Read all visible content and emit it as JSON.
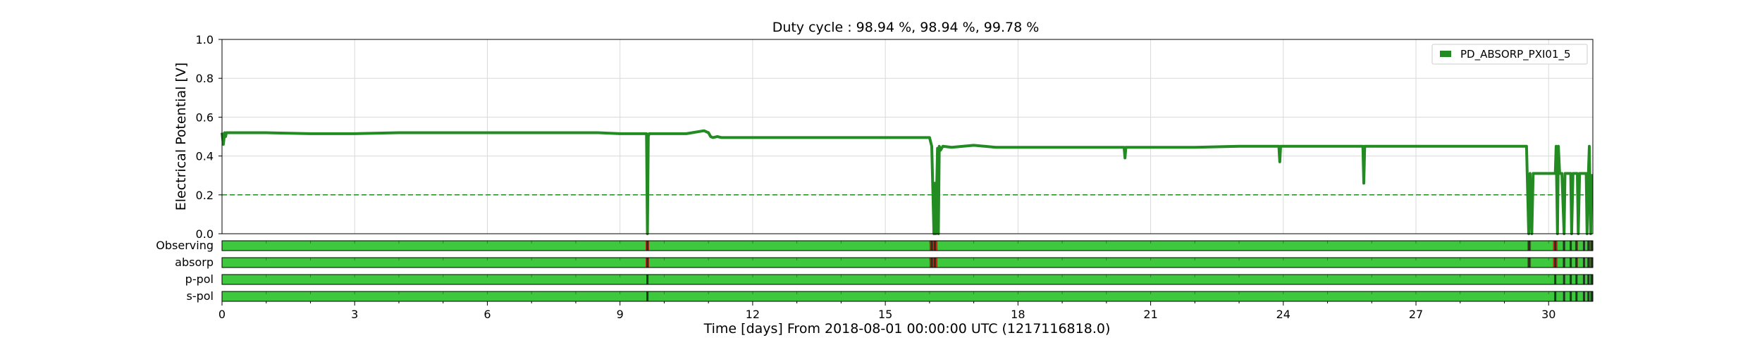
{
  "chart_data": {
    "type": "line",
    "title": "Duty cycle : 98.94 %, 98.94 %, 99.78 %",
    "xlabel": "Time [days] From 2018-08-01 00:00:00 UTC (1217116818.0)",
    "ylabel": "Electrical Potential [V]",
    "xlim": [
      0,
      31
    ],
    "ylim": [
      0,
      1.0
    ],
    "xticks": [
      0,
      3,
      6,
      9,
      12,
      15,
      18,
      21,
      24,
      27,
      30
    ],
    "yticks": [
      0.0,
      0.2,
      0.4,
      0.6,
      0.8,
      1.0
    ],
    "grid": true,
    "legend_position": "top-right",
    "threshold": 0.2,
    "series": [
      {
        "name": "PD_ABSORP_PXI01_5",
        "color": "#228b22",
        "x": [
          0.0,
          0.03,
          0.06,
          0.08,
          0.1,
          0.5,
          1.0,
          2.0,
          3.0,
          4.0,
          5.0,
          6.0,
          7.0,
          8.0,
          8.5,
          9.0,
          9.6,
          9.62,
          9.64,
          9.66,
          10.0,
          10.5,
          10.9,
          11.0,
          11.05,
          11.1,
          11.2,
          11.3,
          12.0,
          13.0,
          14.0,
          15.0,
          16.0,
          16.05,
          16.1,
          16.12,
          16.14,
          16.18,
          16.2,
          16.22,
          16.25,
          16.3,
          16.5,
          17.0,
          17.5,
          18.0,
          19.0,
          20.0,
          20.4,
          20.42,
          20.44,
          21.0,
          22.0,
          23.0,
          23.9,
          23.92,
          23.94,
          24.0,
          25.0,
          25.8,
          25.82,
          25.84,
          26.0,
          27.0,
          28.0,
          29.0,
          29.5,
          29.55,
          29.58,
          29.62,
          29.65,
          30.0,
          30.15,
          30.17,
          30.2,
          30.22,
          30.25,
          30.3,
          30.35,
          30.37,
          30.4,
          30.45,
          30.5,
          30.52,
          30.55,
          30.6,
          30.65,
          30.67,
          30.7,
          30.75,
          30.8,
          30.85,
          30.87,
          30.9,
          30.92,
          30.95,
          30.97,
          31.0
        ],
        "y": [
          0.52,
          0.46,
          0.52,
          0.5,
          0.52,
          0.52,
          0.52,
          0.515,
          0.515,
          0.52,
          0.52,
          0.52,
          0.52,
          0.52,
          0.52,
          0.515,
          0.515,
          0.0,
          0.5,
          0.515,
          0.515,
          0.515,
          0.53,
          0.52,
          0.5,
          0.495,
          0.5,
          0.495,
          0.495,
          0.495,
          0.495,
          0.495,
          0.495,
          0.45,
          0.0,
          0.26,
          0.0,
          0.44,
          0.0,
          0.45,
          0.43,
          0.45,
          0.445,
          0.455,
          0.445,
          0.445,
          0.445,
          0.445,
          0.445,
          0.39,
          0.445,
          0.445,
          0.445,
          0.45,
          0.45,
          0.37,
          0.45,
          0.45,
          0.45,
          0.45,
          0.26,
          0.45,
          0.45,
          0.45,
          0.45,
          0.45,
          0.45,
          0.0,
          0.31,
          0.0,
          0.31,
          0.31,
          0.31,
          0.45,
          0.0,
          0.45,
          0.31,
          0.31,
          0.0,
          0.31,
          0.31,
          0.31,
          0.31,
          0.0,
          0.31,
          0.31,
          0.31,
          0.0,
          0.31,
          0.31,
          0.31,
          0.31,
          0.0,
          0.31,
          0.45,
          0.0,
          0.3,
          0.3
        ]
      }
    ],
    "segment_rows": [
      {
        "label": "Observing",
        "on_color": "#3ec83e",
        "off_color": "#c8281e",
        "gaps": [
          [
            9.58,
            9.66
          ],
          [
            16.0,
            16.18
          ],
          [
            29.52,
            29.6
          ],
          [
            30.1,
            30.2
          ],
          [
            30.32,
            30.36
          ],
          [
            30.48,
            30.52
          ],
          [
            30.6,
            30.66
          ],
          [
            30.78,
            30.82
          ],
          [
            30.88,
            30.94
          ]
        ]
      },
      {
        "label": "absorp",
        "on_color": "#3ec83e",
        "off_color": "#c8281e",
        "gaps": [
          [
            9.58,
            9.66
          ],
          [
            16.0,
            16.18
          ],
          [
            29.52,
            29.6
          ],
          [
            30.1,
            30.2
          ],
          [
            30.32,
            30.36
          ],
          [
            30.48,
            30.52
          ],
          [
            30.6,
            30.66
          ],
          [
            30.78,
            30.82
          ],
          [
            30.88,
            30.94
          ]
        ]
      },
      {
        "label": "p-pol",
        "on_color": "#3ec83e",
        "off_color": "#c8281e",
        "gaps": []
      },
      {
        "label": "s-pol",
        "on_color": "#3ec83e",
        "off_color": "#c8281e",
        "gaps": []
      }
    ],
    "segment_markers": {
      "Observing": [
        9.62,
        16.05,
        16.12,
        29.56,
        30.15,
        30.35,
        30.5,
        30.63,
        30.8,
        30.9,
        30.97
      ],
      "absorp": [
        9.62,
        16.05,
        16.12,
        29.56,
        30.15,
        30.35,
        30.5,
        30.63,
        30.8,
        30.9,
        30.97
      ],
      "p-pol": [
        9.62,
        30.15,
        30.35,
        30.5,
        30.63,
        30.8,
        30.9,
        30.97
      ],
      "s-pol": [
        9.62,
        30.15,
        30.35,
        30.5,
        30.63,
        30.8,
        30.9,
        30.97
      ]
    }
  }
}
